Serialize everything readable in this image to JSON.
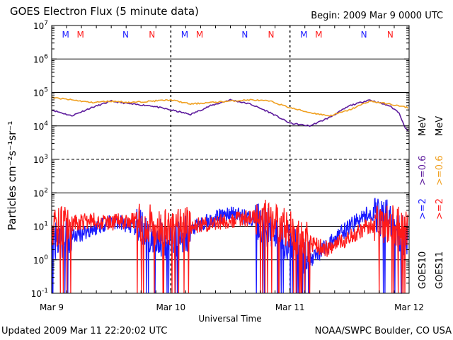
{
  "header": {
    "title": "GOES Electron Flux (5 minute data)",
    "begin": "Begin: 2009 Mar 9 0000 UTC"
  },
  "footer": {
    "updated": "Updated 2009 Mar 11 22:20:02 UTC",
    "agency": "NOAA/SWPC Boulder, CO USA"
  },
  "colors": {
    "goes10_high": "#1a1aff",
    "goes11_high": "#ff1a1a",
    "goes10_low": "#5c1a9c",
    "goes11_low": "#f0a020"
  },
  "chart_data": {
    "type": "line",
    "title": "GOES Electron Flux (5 minute data)",
    "xlabel": "Universal Time",
    "ylabel": "Particles cm⁻²s⁻¹sr⁻¹",
    "yscale": "log",
    "ylim": [
      0.1,
      10000000
    ],
    "yticks": [
      {
        "base": "10",
        "exp": "-1",
        "value": 0.1
      },
      {
        "base": "10",
        "exp": "0",
        "value": 1
      },
      {
        "base": "10",
        "exp": "1",
        "value": 10
      },
      {
        "base": "10",
        "exp": "2",
        "value": 100
      },
      {
        "base": "10",
        "exp": "3",
        "value": 1000
      },
      {
        "base": "10",
        "exp": "4",
        "value": 10000
      },
      {
        "base": "10",
        "exp": "5",
        "value": 100000
      },
      {
        "base": "10",
        "exp": "6",
        "value": 1000000
      },
      {
        "base": "10",
        "exp": "7",
        "value": 10000000
      }
    ],
    "xlim": [
      "2009-03-09 00:00",
      "2009-03-12 00:00"
    ],
    "xticks": [
      "Mar 9",
      "Mar 10",
      "Mar 11",
      "Mar 12"
    ],
    "grid": true,
    "day_markers": [
      {
        "day": 0,
        "marks": [
          {
            "text": "M",
            "hour": 2.8,
            "series": "goes10"
          },
          {
            "text": "M",
            "hour": 5.8,
            "series": "goes11"
          },
          {
            "text": "N",
            "hour": 14.9,
            "series": "goes10"
          },
          {
            "text": "N",
            "hour": 20.2,
            "series": "goes11"
          }
        ]
      },
      {
        "day": 1,
        "marks": [
          {
            "text": "M",
            "hour": 2.8,
            "series": "goes10"
          },
          {
            "text": "M",
            "hour": 5.8,
            "series": "goes11"
          },
          {
            "text": "N",
            "hour": 14.9,
            "series": "goes10"
          },
          {
            "text": "N",
            "hour": 20.2,
            "series": "goes11"
          }
        ]
      },
      {
        "day": 2,
        "marks": [
          {
            "text": "M",
            "hour": 2.8,
            "series": "goes10"
          },
          {
            "text": "M",
            "hour": 5.8,
            "series": "goes11"
          },
          {
            "text": "N",
            "hour": 14.9,
            "series": "goes10"
          },
          {
            "text": "N",
            "hour": 20.2,
            "series": "goes11"
          }
        ]
      }
    ],
    "legend": [
      {
        "satellite": "GOES10",
        "high": ">=2",
        "low": ">=0.6",
        "unit": "MeV"
      },
      {
        "satellite": "GOES11",
        "high": ">=2",
        "low": ">=0.6",
        "unit": "MeV"
      }
    ],
    "legend_placement": "right",
    "series": [
      {
        "key": "goes10_low",
        "color": "#5c1a9c",
        "x_hours": [
          0,
          4,
          8,
          12,
          16,
          20,
          24,
          28,
          32,
          36,
          40,
          44,
          48,
          52,
          56,
          60,
          64,
          68,
          70,
          71,
          71.8
        ],
        "values": [
          30000,
          20000,
          35000,
          55000,
          45000,
          40000,
          30000,
          22000,
          40000,
          60000,
          45000,
          25000,
          12000,
          10000,
          18000,
          40000,
          60000,
          40000,
          25000,
          10000,
          7000
        ]
      },
      {
        "key": "goes11_low",
        "color": "#f0a020",
        "x_hours": [
          0,
          4,
          8,
          12,
          16,
          20,
          24,
          28,
          32,
          36,
          40,
          44,
          48,
          52,
          56,
          60,
          64,
          68,
          71.8
        ],
        "values": [
          70000,
          60000,
          50000,
          55000,
          50000,
          55000,
          60000,
          45000,
          50000,
          55000,
          60000,
          55000,
          35000,
          25000,
          20000,
          30000,
          55000,
          45000,
          35000
        ]
      },
      {
        "key": "goes10_high",
        "color": "#1a1aff",
        "x_hours": [
          0,
          4,
          8,
          12,
          16,
          20,
          24,
          28,
          32,
          36,
          40,
          44,
          48,
          52,
          56,
          60,
          64,
          68,
          71.8
        ],
        "values": [
          3,
          5,
          8,
          15,
          10,
          6,
          3,
          8,
          15,
          25,
          18,
          8,
          3,
          1,
          3,
          10,
          25,
          15,
          4
        ]
      },
      {
        "key": "goes11_high",
        "color": "#ff1a1a",
        "x_hours": [
          0,
          4,
          8,
          12,
          16,
          20,
          24,
          28,
          32,
          36,
          40,
          44,
          48,
          52,
          56,
          60,
          64,
          68,
          71.8
        ],
        "values": [
          8,
          12,
          15,
          13,
          15,
          12,
          8,
          10,
          12,
          15,
          18,
          15,
          8,
          3,
          2,
          5,
          10,
          12,
          8
        ]
      }
    ]
  }
}
